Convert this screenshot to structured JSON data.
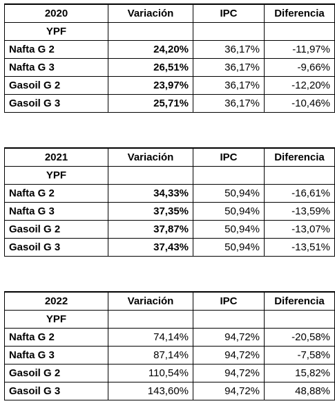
{
  "colors": {
    "year": "#e46c0a",
    "brand": "#1f4e79",
    "ipc": "#8b5a2b",
    "text": "#000000"
  },
  "headers": {
    "variacion": "Variación",
    "ipc": "IPC",
    "diferencia": "Diferencia"
  },
  "tables": [
    {
      "year": "2020",
      "brand": "YPF",
      "variacion_bold": true,
      "rows": [
        {
          "product": "Nafta G 2",
          "variacion": "24,20%",
          "ipc": "36,17%",
          "diferencia": "-11,97%"
        },
        {
          "product": "Nafta G 3",
          "variacion": "26,51%",
          "ipc": "36,17%",
          "diferencia": "-9,66%"
        },
        {
          "product": "Gasoil G 2",
          "variacion": "23,97%",
          "ipc": "36,17%",
          "diferencia": "-12,20%"
        },
        {
          "product": "Gasoil G 3",
          "variacion": "25,71%",
          "ipc": "36,17%",
          "diferencia": "-10,46%"
        }
      ]
    },
    {
      "year": "2021",
      "brand": "YPF",
      "variacion_bold": true,
      "rows": [
        {
          "product": "Nafta G 2",
          "variacion": "34,33%",
          "ipc": "50,94%",
          "diferencia": "-16,61%"
        },
        {
          "product": "Nafta G 3",
          "variacion": "37,35%",
          "ipc": "50,94%",
          "diferencia": "-13,59%"
        },
        {
          "product": "Gasoil G 2",
          "variacion": "37,87%",
          "ipc": "50,94%",
          "diferencia": "-13,07%"
        },
        {
          "product": "Gasoil G 3",
          "variacion": "37,43%",
          "ipc": "50,94%",
          "diferencia": "-13,51%"
        }
      ]
    },
    {
      "year": "2022",
      "brand": "YPF",
      "variacion_bold": false,
      "rows": [
        {
          "product": "Nafta G 2",
          "variacion": "74,14%",
          "ipc": "94,72%",
          "diferencia": "-20,58%"
        },
        {
          "product": "Nafta G 3",
          "variacion": "87,14%",
          "ipc": "94,72%",
          "diferencia": "-7,58%"
        },
        {
          "product": "Gasoil G 2",
          "variacion": "110,54%",
          "ipc": "94,72%",
          "diferencia": "15,82%"
        },
        {
          "product": "Gasoil G 3",
          "variacion": "143,60%",
          "ipc": "94,72%",
          "diferencia": "48,88%"
        }
      ]
    }
  ]
}
